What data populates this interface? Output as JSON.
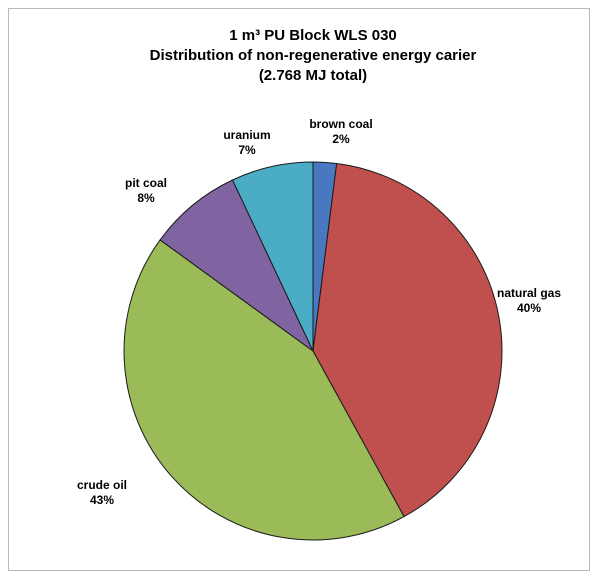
{
  "chart_data": {
    "type": "pie",
    "title_lines": [
      "1 m³ PU Block WLS 030",
      "Distribution of non-regenerative energy carier",
      "(2.768 MJ total)"
    ],
    "slices": [
      {
        "label": "brown coal",
        "value": 2,
        "value_label": "2%",
        "color": "#4a78c0"
      },
      {
        "label": "natural gas",
        "value": 40,
        "value_label": "40%",
        "color": "#c0504d"
      },
      {
        "label": "crude oil",
        "value": 43,
        "value_label": "43%",
        "color": "#9bbb59"
      },
      {
        "label": "pit coal",
        "value": 8,
        "value_label": "8%",
        "color": "#8064a2"
      },
      {
        "label": "uranium",
        "value": 7,
        "value_label": "7%",
        "color": "#4bacc6"
      }
    ],
    "start_angle_deg": 0,
    "direction": "clockwise",
    "legend": "none"
  }
}
